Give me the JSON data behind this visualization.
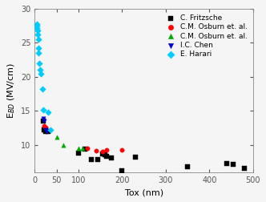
{
  "title": "",
  "xlabel": "Tox (nm)",
  "ylabel": "E$_{BD}$ (MV/cm)",
  "xlim": [
    0,
    500
  ],
  "ylim": [
    6,
    30
  ],
  "yticks": [
    10,
    15,
    20,
    25,
    30
  ],
  "xticks": [
    0,
    50,
    100,
    200,
    300,
    400,
    500
  ],
  "fritzsche": {
    "x": [
      20,
      22,
      25,
      30,
      100,
      115,
      130,
      145,
      155,
      160,
      165,
      175,
      200,
      230,
      350,
      440,
      455,
      480
    ],
    "y": [
      13.5,
      12.2,
      12.0,
      12.0,
      8.8,
      9.4,
      7.8,
      7.8,
      8.7,
      8.5,
      8.3,
      8.1,
      6.2,
      8.2,
      6.8,
      7.2,
      7.1,
      6.5
    ],
    "color": "#000000",
    "marker": "s",
    "label": "C. Fritzsche",
    "size": 15
  },
  "osburn_red": {
    "x": [
      22,
      25,
      120,
      140,
      155,
      165,
      200
    ],
    "y": [
      12.8,
      12.5,
      9.5,
      9.1,
      9.0,
      9.2,
      9.2
    ],
    "color": "#ff0000",
    "marker": "o",
    "label": "C.M. Osburn et. al.",
    "size": 15
  },
  "osburn_green": {
    "x": [
      50,
      65,
      100,
      110
    ],
    "y": [
      11.1,
      10.0,
      9.5,
      9.5
    ],
    "color": "#00aa00",
    "marker": "^",
    "label": "C.M. Osburn et. al.",
    "size": 15
  },
  "chen": {
    "x": [
      20,
      22,
      25,
      27
    ],
    "y": [
      13.8,
      13.5,
      12.2,
      12.0
    ],
    "color": "#0000cc",
    "marker": "v",
    "label": "I.C. Chen",
    "size": 15
  },
  "harari": {
    "x": [
      4,
      5,
      5.5,
      6,
      7,
      7.5,
      8,
      9,
      10,
      12,
      14,
      17,
      20,
      30,
      35
    ],
    "y": [
      27.8,
      27.5,
      27.2,
      26.8,
      26.2,
      25.5,
      24.2,
      23.5,
      22.0,
      21.0,
      20.5,
      18.2,
      15.2,
      14.8,
      12.2
    ],
    "color": "#00ccff",
    "marker": "D",
    "label": "E. Harari",
    "size": 15
  },
  "legend_fontsize": 6.5,
  "axis_fontsize": 8,
  "tick_fontsize": 7,
  "bg_color": "#f5f5f5"
}
